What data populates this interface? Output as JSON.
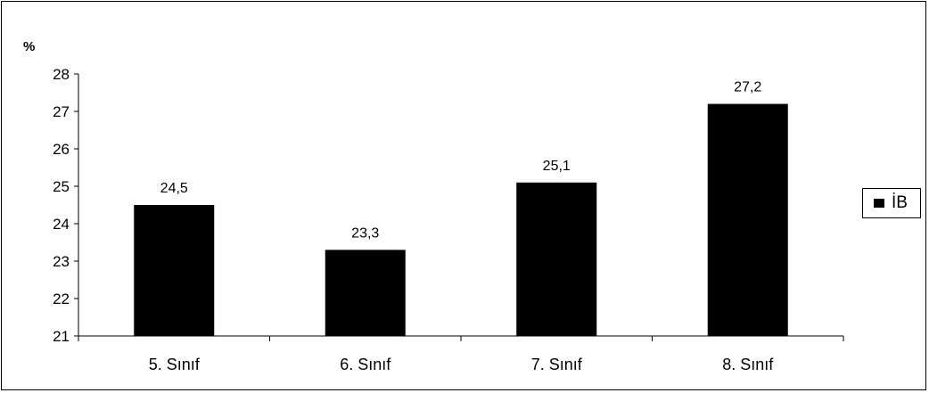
{
  "chart_data": {
    "type": "bar",
    "title": "",
    "ylabel": "%",
    "xlabel": "",
    "categories": [
      "5. Sınıf",
      "6. Sınıf",
      "7. Sınıf",
      "8. Sınıf"
    ],
    "series": [
      {
        "name": "İB",
        "values": [
          24.5,
          23.3,
          25.1,
          27.2
        ],
        "labels": [
          "24,5",
          "23,3",
          "25,1",
          "27,2"
        ],
        "color": "#000000"
      }
    ],
    "ylim": [
      21,
      28
    ],
    "yticks": [
      "21",
      "22",
      "23",
      "24",
      "25",
      "26",
      "27",
      "28"
    ],
    "grid": false,
    "legend_position": "right"
  }
}
